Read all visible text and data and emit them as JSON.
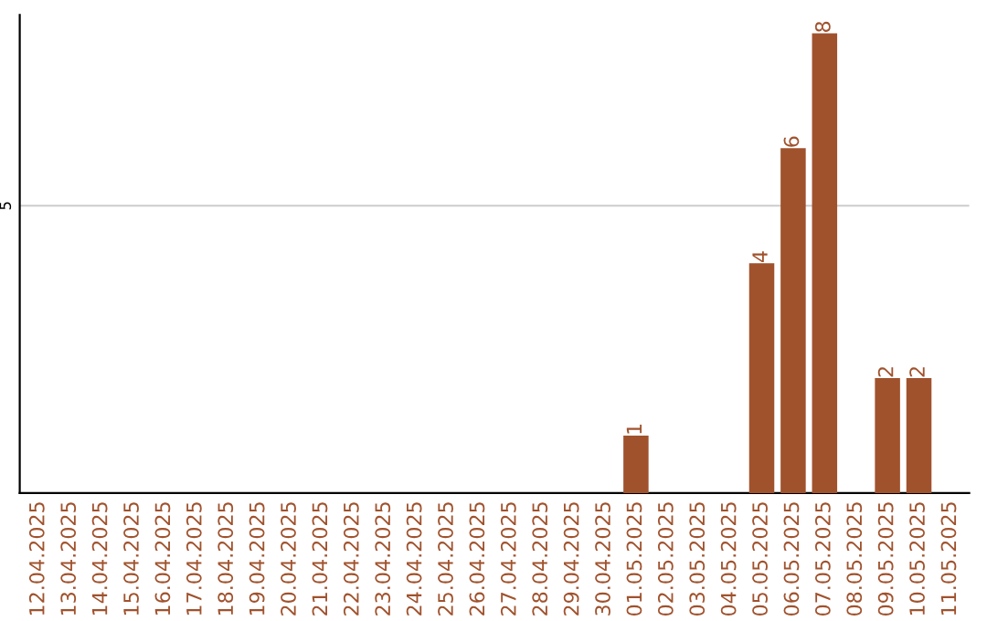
{
  "chart_data": {
    "type": "bar",
    "categories": [
      "12.04.2025",
      "13.04.2025",
      "14.04.2025",
      "15.04.2025",
      "16.04.2025",
      "17.04.2025",
      "18.04.2025",
      "19.04.2025",
      "20.04.2025",
      "21.04.2025",
      "22.04.2025",
      "23.04.2025",
      "24.04.2025",
      "25.04.2025",
      "26.04.2025",
      "27.04.2025",
      "28.04.2025",
      "29.04.2025",
      "30.04.2025",
      "01.05.2025",
      "02.05.2025",
      "03.05.2025",
      "04.05.2025",
      "05.05.2025",
      "06.05.2025",
      "07.05.2025",
      "08.05.2025",
      "09.05.2025",
      "10.05.2025",
      "11.05.2025"
    ],
    "values": [
      null,
      null,
      null,
      null,
      null,
      null,
      null,
      null,
      null,
      null,
      null,
      null,
      null,
      null,
      null,
      null,
      null,
      null,
      null,
      1,
      null,
      null,
      null,
      4,
      6,
      8,
      null,
      2,
      2,
      null
    ],
    "data_labels": true,
    "color": "#a0522d",
    "ref_lines": [
      {
        "axis": "y",
        "value": 5,
        "label": "5",
        "color": "#cccccc"
      }
    ]
  }
}
